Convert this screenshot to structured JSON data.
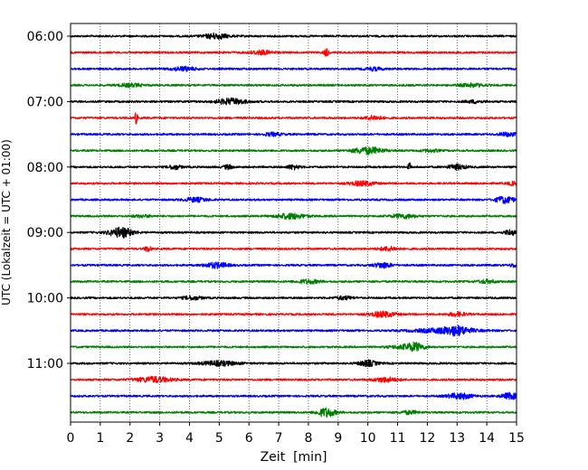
{
  "chart_data": {
    "type": "line",
    "title": "",
    "xlabel": "Zeit  [min]",
    "ylabel": "UTC (Lokalzeit = UTC + 01:00)",
    "xlim": [
      0,
      15
    ],
    "x_ticks": [
      "0",
      "1",
      "2",
      "3",
      "4",
      "5",
      "6",
      "7",
      "8",
      "9",
      "10",
      "11",
      "12",
      "13",
      "14",
      "15"
    ],
    "y_ticks": [
      "06:00",
      "07:00",
      "08:00",
      "09:00",
      "10:00",
      "11:00"
    ],
    "grid": "vertical dotted",
    "legend": "none",
    "color_cycle": [
      "#000000",
      "#ff0000",
      "#0000ff",
      "#008000"
    ],
    "trace_labels": [
      "06:00",
      "06:15",
      "06:30",
      "06:45",
      "07:00",
      "07:15",
      "07:30",
      "07:45",
      "08:00",
      "08:15",
      "08:30",
      "08:45",
      "09:00",
      "09:15",
      "09:30",
      "09:45",
      "10:00",
      "10:15",
      "10:30",
      "10:45",
      "11:00",
      "11:15",
      "11:30",
      "11:45"
    ],
    "events": [
      [
        [
          4.9,
          1.2,
          0.4
        ]
      ],
      [
        [
          6.4,
          0.9,
          0.4
        ],
        [
          8.6,
          1.6,
          0.08
        ]
      ],
      [
        [
          3.8,
          0.9,
          0.4
        ],
        [
          10.2,
          0.7,
          0.3
        ]
      ],
      [
        [
          2.0,
          0.7,
          0.4
        ],
        [
          13.5,
          0.7,
          0.4
        ]
      ],
      [
        [
          5.4,
          1.3,
          0.5
        ],
        [
          13.6,
          0.6,
          0.3
        ]
      ],
      [
        [
          2.2,
          2.5,
          0.05
        ],
        [
          10.2,
          0.9,
          0.3
        ]
      ],
      [
        [
          6.8,
          0.7,
          0.3
        ],
        [
          14.7,
          0.8,
          0.3
        ]
      ],
      [
        [
          10.0,
          1.5,
          0.5
        ],
        [
          12.1,
          0.5,
          0.3
        ]
      ],
      [
        [
          3.5,
          1.0,
          0.2
        ],
        [
          5.3,
          0.9,
          0.15
        ],
        [
          7.5,
          1.0,
          0.2
        ],
        [
          11.4,
          1.8,
          0.05
        ],
        [
          13.0,
          1.1,
          0.3
        ]
      ],
      [
        [
          9.8,
          1.0,
          0.4
        ],
        [
          14.9,
          0.7,
          0.2
        ]
      ],
      [
        [
          4.2,
          0.9,
          0.4
        ],
        [
          14.6,
          1.5,
          0.3
        ]
      ],
      [
        [
          7.4,
          1.2,
          0.5
        ],
        [
          11.2,
          0.9,
          0.4
        ],
        [
          2.4,
          0.5,
          0.3
        ]
      ],
      [
        [
          1.7,
          2.2,
          0.4
        ],
        [
          14.8,
          1.2,
          0.2
        ]
      ],
      [
        [
          2.6,
          1.3,
          0.1
        ],
        [
          10.7,
          0.9,
          0.3
        ]
      ],
      [
        [
          4.9,
          1.2,
          0.4
        ],
        [
          10.5,
          1.2,
          0.3
        ],
        [
          15.0,
          1.0,
          0.2
        ]
      ],
      [
        [
          8.0,
          0.8,
          0.4
        ],
        [
          14.0,
          0.8,
          0.3
        ]
      ],
      [
        [
          4.1,
          0.8,
          0.3
        ],
        [
          9.2,
          0.7,
          0.3
        ]
      ],
      [
        [
          10.5,
          1.2,
          0.4
        ],
        [
          13.0,
          0.8,
          0.3
        ]
      ],
      [
        [
          12.6,
          1.0,
          1.0
        ],
        [
          13.0,
          1.3,
          0.4
        ]
      ],
      [
        [
          11.6,
          1.6,
          0.3
        ],
        [
          11.2,
          0.7,
          0.5
        ]
      ],
      [
        [
          5.0,
          1.0,
          0.6
        ],
        [
          10.0,
          1.3,
          0.3
        ]
      ],
      [
        [
          2.8,
          1.2,
          0.6
        ],
        [
          10.6,
          1.0,
          0.4
        ]
      ],
      [
        [
          13.1,
          1.3,
          0.4
        ],
        [
          14.8,
          1.3,
          0.3
        ]
      ],
      [
        [
          8.6,
          2.0,
          0.3
        ],
        [
          11.4,
          0.7,
          0.3
        ]
      ]
    ]
  }
}
